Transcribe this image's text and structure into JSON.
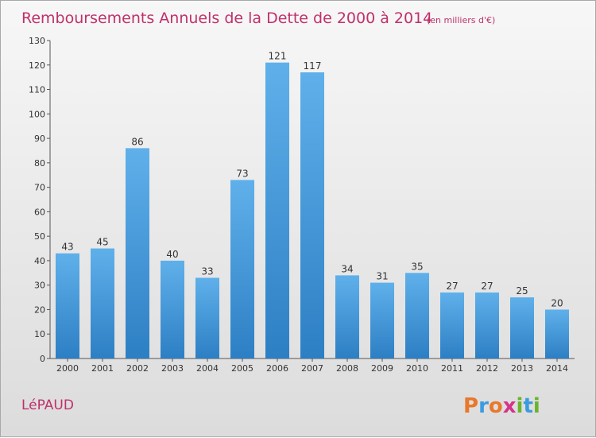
{
  "chart_data": {
    "type": "bar",
    "title": "Remboursements Annuels de la Dette de 2000 à 2014",
    "subtitle": "(en milliers d'€)",
    "categories": [
      "2000",
      "2001",
      "2002",
      "2003",
      "2004",
      "2005",
      "2006",
      "2007",
      "2008",
      "2009",
      "2010",
      "2011",
      "2012",
      "2013",
      "2014"
    ],
    "values": [
      43,
      45,
      86,
      40,
      33,
      73,
      121,
      117,
      34,
      31,
      35,
      27,
      27,
      25,
      20
    ],
    "ylim": [
      0,
      130
    ],
    "yticks": [
      0,
      10,
      20,
      30,
      40,
      50,
      60,
      70,
      80,
      90,
      100,
      110,
      120,
      130
    ],
    "xlabel": "",
    "ylabel": "",
    "grid": false,
    "bar_color": "#3a8fd6"
  },
  "commune": "LéPAUD",
  "logo": {
    "letters": [
      "P",
      "r",
      "o",
      "x",
      "i",
      "t",
      "i"
    ],
    "colors": [
      "#e8782a",
      "#3b9be0",
      "#e8782a",
      "#d6338a",
      "#6ab42d",
      "#3b9be0",
      "#6ab42d"
    ]
  },
  "colors": {
    "accent": "#c0306a",
    "bar_top": "#5fb0ea",
    "bar_bottom": "#2d7fc4"
  }
}
